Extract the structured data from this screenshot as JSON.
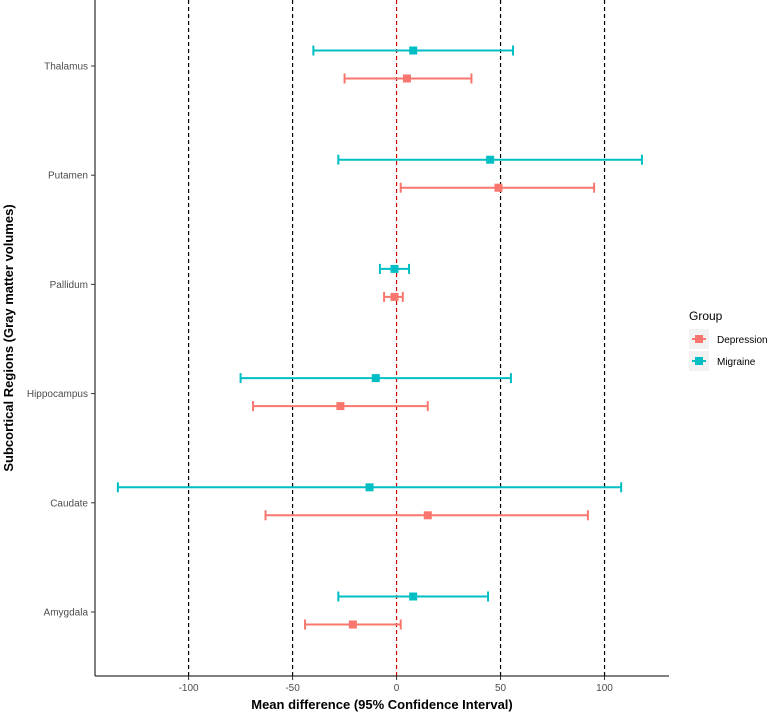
{
  "chart_data": {
    "type": "forest",
    "xlabel": "Mean difference (95% Confidence Interval)",
    "ylabel": "Subcortical Regions (Gray matter volumes)",
    "xlim": [
      -145,
      131
    ],
    "xticks": [
      -100,
      -50,
      0,
      50,
      100
    ],
    "xtick_labels": [
      "-100",
      "-50",
      "0",
      "50",
      "100"
    ],
    "reference_lines": [
      {
        "x": -100,
        "color": "#000000",
        "style": "dashed"
      },
      {
        "x": -50,
        "color": "#000000",
        "style": "dashed"
      },
      {
        "x": 0,
        "color": "#cc0000",
        "style": "dashed"
      },
      {
        "x": 50,
        "color": "#000000",
        "style": "dashed"
      },
      {
        "x": 100,
        "color": "#000000",
        "style": "dashed"
      }
    ],
    "categories": [
      "Thalamus",
      "Putamen",
      "Pallidum",
      "Hippocampus",
      "Caudate",
      "Amygdala"
    ],
    "legend": {
      "title": "Group",
      "position": "right",
      "entries": [
        "Depression",
        "Migraine"
      ]
    },
    "series": [
      {
        "name": "Depression",
        "color": "#F8766D",
        "points": [
          {
            "category": "Thalamus",
            "mean": 5,
            "lower": -25,
            "upper": 36
          },
          {
            "category": "Putamen",
            "mean": 49,
            "lower": 2,
            "upper": 95
          },
          {
            "category": "Pallidum",
            "mean": -1,
            "lower": -6,
            "upper": 3
          },
          {
            "category": "Hippocampus",
            "mean": -27,
            "lower": -69,
            "upper": 15
          },
          {
            "category": "Caudate",
            "mean": 15,
            "lower": -63,
            "upper": 92
          },
          {
            "category": "Amygdala",
            "mean": -21,
            "lower": -44,
            "upper": 2
          }
        ]
      },
      {
        "name": "Migraine",
        "color": "#00BFC4",
        "points": [
          {
            "category": "Thalamus",
            "mean": 8,
            "lower": -40,
            "upper": 56
          },
          {
            "category": "Putamen",
            "mean": 45,
            "lower": -28,
            "upper": 118
          },
          {
            "category": "Pallidum",
            "mean": -1,
            "lower": -8,
            "upper": 6
          },
          {
            "category": "Hippocampus",
            "mean": -10,
            "lower": -75,
            "upper": 55
          },
          {
            "category": "Caudate",
            "mean": -13,
            "lower": -134,
            "upper": 108
          },
          {
            "category": "Amygdala",
            "mean": 8,
            "lower": -28,
            "upper": 44
          }
        ]
      }
    ]
  }
}
